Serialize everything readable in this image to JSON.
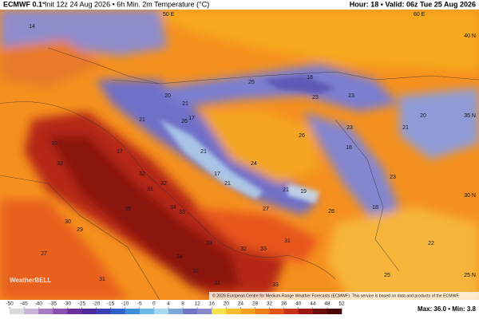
{
  "header": {
    "model": "ECMWF 0.1°",
    "title": "Init 12z 24 Aug 2026 • 6h Min. 2m Temperature (°C)",
    "valid": "Hour: 18 • Valid: 06z Tue 25 Aug 2026"
  },
  "map": {
    "grid_labels": [
      "50 E",
      "60 E",
      "40 N",
      "35 N",
      "30 N",
      "25 N"
    ],
    "watermark": "WeatherBELL",
    "values": [
      14,
      25,
      18,
      23,
      23,
      20,
      21,
      17,
      26,
      21,
      17,
      21,
      24,
      17,
      21,
      19,
      18,
      28,
      27,
      33,
      33,
      32,
      31,
      32,
      34,
      33,
      35,
      30,
      29,
      27,
      31,
      33,
      32,
      33,
      31,
      34,
      32,
      31,
      33,
      25,
      22,
      23,
      18,
      21,
      20,
      26,
      23,
      21
    ]
  },
  "colorbar": {
    "ticks": [
      -50,
      -45,
      -40,
      -35,
      -30,
      -25,
      -20,
      -15,
      -10,
      -5,
      0,
      4,
      8,
      12,
      16,
      20,
      24,
      28,
      32,
      36,
      40,
      44,
      48,
      52
    ]
  },
  "footer": {
    "credit": "© 2026 European Centre for Medium-Range Weather Forecasts (ECMWF). This service is based on data and products of the ECMWF.",
    "stats": "Max: 36.0 • Min: 3.8"
  }
}
